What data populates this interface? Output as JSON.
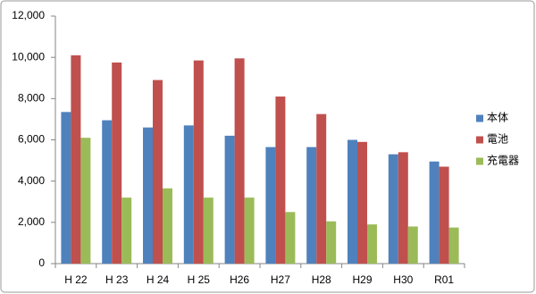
{
  "chart_data": {
    "type": "bar",
    "categories": [
      "H 22",
      "H 23",
      "H 24",
      "H 25",
      "H26",
      "H27",
      "H28",
      "H29",
      "H30",
      "R01"
    ],
    "series": [
      {
        "name": "本体",
        "color": "#4f81bd",
        "values": [
          7350,
          6950,
          6600,
          6700,
          6200,
          5650,
          5650,
          6000,
          5300,
          4950
        ]
      },
      {
        "name": "電池",
        "color": "#c0504d",
        "values": [
          10100,
          9750,
          8900,
          9850,
          9950,
          8100,
          7250,
          5900,
          5400,
          4700
        ]
      },
      {
        "name": "充電器",
        "color": "#9bbb59",
        "values": [
          6100,
          3200,
          3650,
          3200,
          3200,
          2500,
          2050,
          1900,
          1800,
          1750
        ]
      }
    ],
    "ylim": [
      0,
      12000
    ],
    "yticks": [
      0,
      {
        "value": 2000,
        "label": "2,000"
      },
      {
        "value": 4000,
        "label": "4,000"
      },
      {
        "value": 6000,
        "label": "6,000"
      },
      {
        "value": 8000,
        "label": "8,000"
      },
      {
        "value": 10000,
        "label": "10,000"
      },
      {
        "value": 12000,
        "label": "12,000"
      }
    ],
    "grid": false,
    "legend": "right"
  }
}
